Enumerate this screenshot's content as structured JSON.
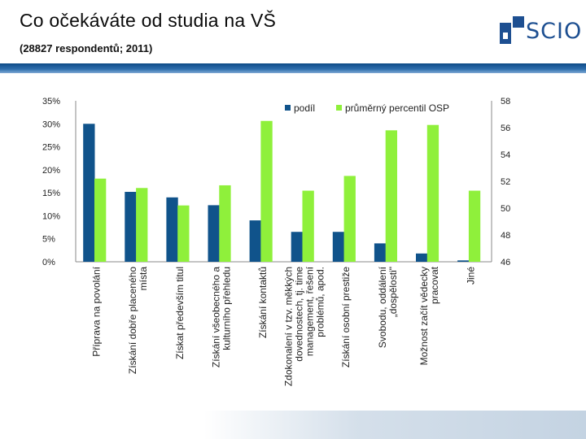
{
  "header": {
    "title": "Co očekáváte od studia na VŠ",
    "subtitle": "(28827 respondentů; 2011)",
    "logo_text": "SCIO"
  },
  "colors": {
    "podil": "#10538b",
    "osp": "#8ff03b",
    "brand": "#1d4f91"
  },
  "chart_data": {
    "type": "bar",
    "title": "Co očekáváte od studia na VŠ",
    "categories": [
      [
        "Příprava na povolání"
      ],
      [
        "Získání dobře placeného",
        "místa"
      ],
      [
        "Získat především titul"
      ],
      [
        "Získání všeobecného a",
        "kulturního přehledu"
      ],
      [
        "Získání kontaktů"
      ],
      [
        "Zdokonalení v tzv. měkkých",
        "dovednostech, tj. time",
        "management, řešení",
        "problémů, apod."
      ],
      [
        "Získání osobní prestiže"
      ],
      [
        "Svobodu, oddálení",
        "„dospělosti\""
      ],
      [
        "Možnost začít vědecky",
        "pracovat"
      ],
      [
        "Jiné"
      ]
    ],
    "series": [
      {
        "name": "podíl",
        "axis": "left",
        "values": [
          30,
          15.2,
          14,
          12.3,
          9,
          6.5,
          6.5,
          4,
          1.8,
          0.3
        ]
      },
      {
        "name": "průměrný percentil OSP",
        "axis": "right",
        "values": [
          52.2,
          51.5,
          50.2,
          51.7,
          56.5,
          51.3,
          52.4,
          55.8,
          56.2,
          51.3
        ]
      }
    ],
    "y_left": {
      "min": 0,
      "max": 35,
      "ticks": [
        "0%",
        "5%",
        "10%",
        "15%",
        "20%",
        "25%",
        "30%",
        "35%"
      ]
    },
    "y_right": {
      "min": 46,
      "max": 58,
      "ticks": [
        "46",
        "48",
        "50",
        "52",
        "54",
        "56",
        "58"
      ]
    },
    "legend": [
      "podíl",
      "průměrný percentil OSP"
    ],
    "legend_position": "top-right"
  }
}
